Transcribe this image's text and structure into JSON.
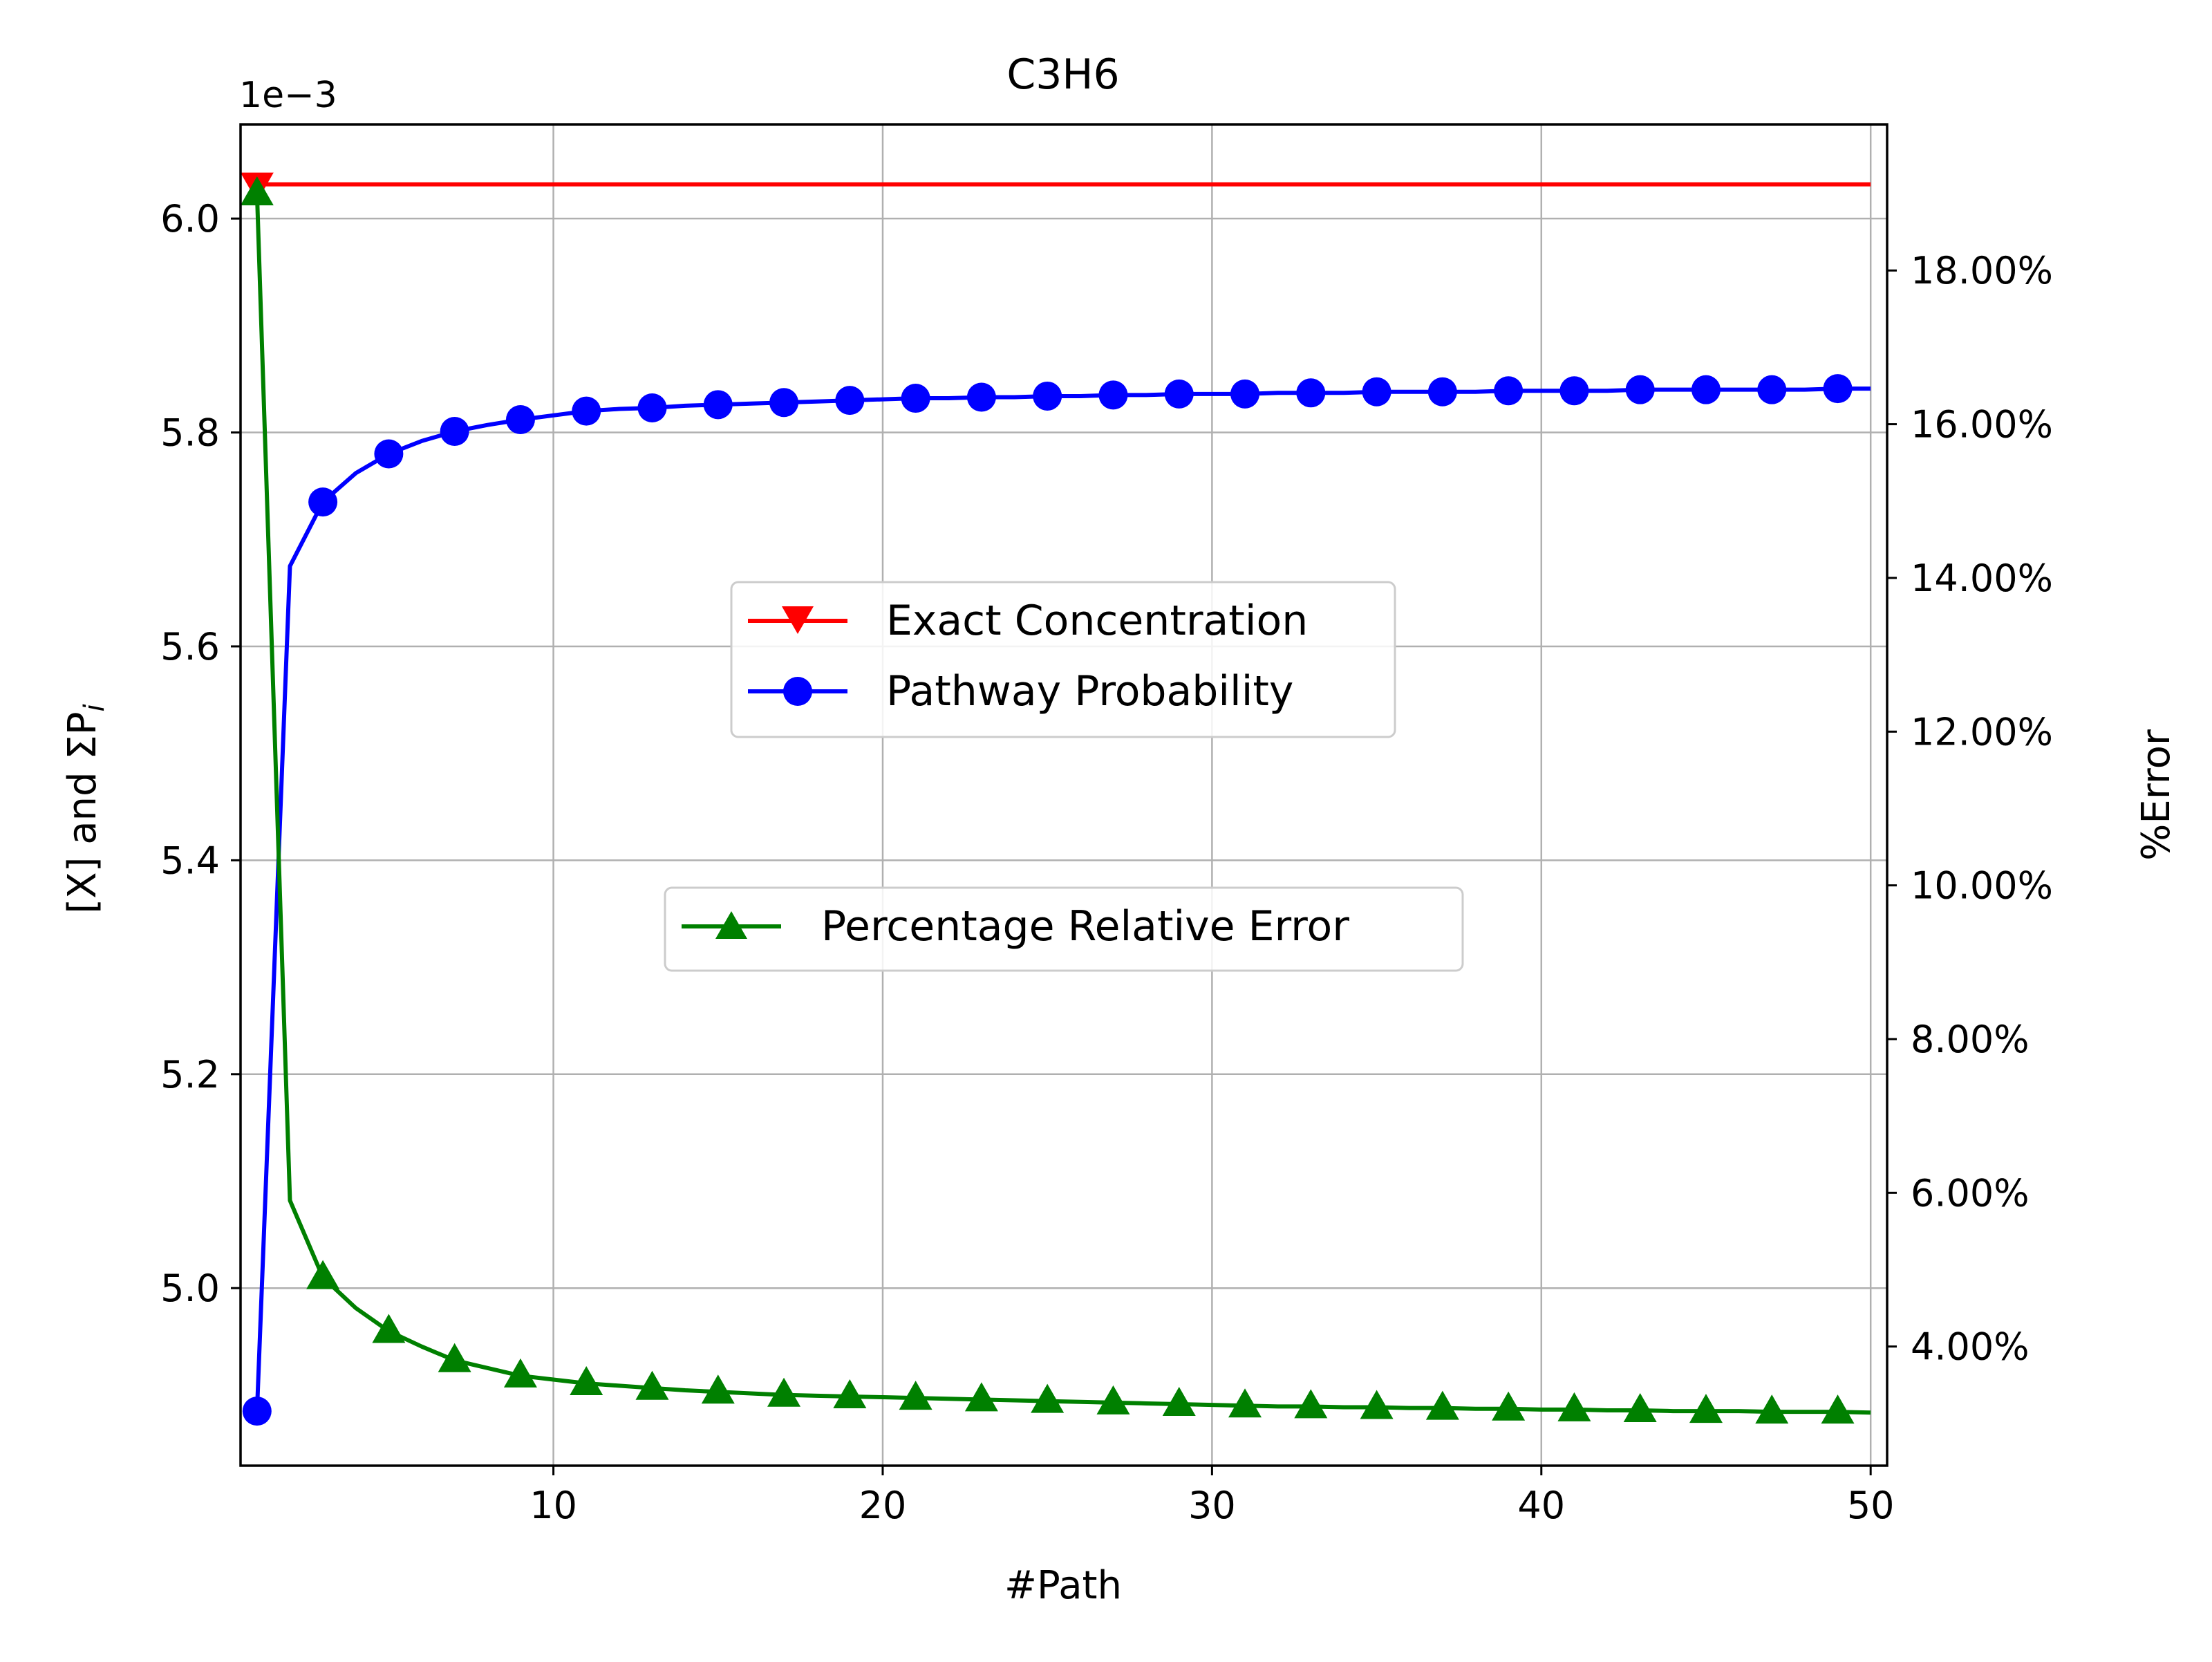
{
  "chart_data": {
    "type": "line",
    "title": "C3H6",
    "xlabel": "#Path",
    "ylabel": "[X] and ΣP",
    "ylabel_subscript": "i",
    "y2label": "%Error",
    "left_axis_offset_text": "1e−3",
    "xlim": [
      0.5,
      50.5
    ],
    "ylim": [
      4.834,
      6.088
    ],
    "y2lim": [
      2.45,
      19.9
    ],
    "x_ticks": [
      10,
      20,
      30,
      40,
      50
    ],
    "x_tick_labels": [
      "10",
      "20",
      "30",
      "40",
      "50"
    ],
    "y_ticks": [
      5.0,
      5.2,
      5.4,
      5.6,
      5.8,
      6.0
    ],
    "y_tick_labels": [
      "5.0",
      "5.2",
      "5.4",
      "5.6",
      "5.8",
      "6.0"
    ],
    "y2_ticks": [
      4,
      6,
      8,
      10,
      12,
      14,
      16,
      18
    ],
    "y2_tick_labels": [
      "4.00%",
      "6.00%",
      "8.00%",
      "10.00%",
      "12.00%",
      "14.00%",
      "16.00%",
      "18.00%"
    ],
    "grid": true,
    "legend_placement": "center",
    "series": [
      {
        "name": "Exact Concentration",
        "axis": "left",
        "color": "#ff0000",
        "marker": "triangle-down",
        "x": [
          1,
          50
        ],
        "y": [
          6.032,
          6.032
        ],
        "marker_x": [
          1
        ]
      },
      {
        "name": "Pathway Probability",
        "axis": "left",
        "color": "#0000ff",
        "marker": "circle",
        "x": [
          1,
          2,
          3,
          4,
          5,
          6,
          7,
          8,
          9,
          10,
          11,
          12,
          13,
          14,
          15,
          16,
          17,
          18,
          19,
          20,
          21,
          22,
          23,
          24,
          25,
          26,
          27,
          28,
          29,
          30,
          31,
          32,
          33,
          34,
          35,
          36,
          37,
          38,
          39,
          40,
          41,
          42,
          43,
          44,
          45,
          46,
          47,
          48,
          49,
          50
        ],
        "y": [
          4.885,
          5.675,
          5.735,
          5.762,
          5.78,
          5.792,
          5.801,
          5.807,
          5.812,
          5.816,
          5.82,
          5.822,
          5.823,
          5.825,
          5.826,
          5.827,
          5.828,
          5.829,
          5.83,
          5.831,
          5.832,
          5.832,
          5.833,
          5.833,
          5.834,
          5.834,
          5.835,
          5.835,
          5.836,
          5.836,
          5.836,
          5.837,
          5.837,
          5.837,
          5.838,
          5.838,
          5.838,
          5.838,
          5.839,
          5.839,
          5.839,
          5.839,
          5.84,
          5.84,
          5.84,
          5.84,
          5.84,
          5.84,
          5.841,
          5.841
        ],
        "marker_x": [
          1,
          3,
          5,
          7,
          9,
          11,
          13,
          15,
          17,
          19,
          21,
          23,
          25,
          27,
          29,
          31,
          33,
          35,
          37,
          39,
          41,
          43,
          45,
          47,
          49
        ]
      },
      {
        "name": "Percentage Relative Error",
        "axis": "right",
        "color": "#008000",
        "marker": "triangle-up",
        "x": [
          1,
          2,
          3,
          4,
          5,
          6,
          7,
          8,
          9,
          10,
          11,
          12,
          13,
          14,
          15,
          16,
          17,
          18,
          19,
          20,
          21,
          22,
          23,
          24,
          25,
          26,
          27,
          28,
          29,
          30,
          31,
          32,
          33,
          34,
          35,
          36,
          37,
          38,
          39,
          40,
          41,
          42,
          43,
          44,
          45,
          46,
          47,
          48,
          49,
          50
        ],
        "y": [
          19.0,
          5.9,
          4.9,
          4.5,
          4.2,
          4.0,
          3.82,
          3.72,
          3.62,
          3.57,
          3.52,
          3.49,
          3.46,
          3.43,
          3.41,
          3.39,
          3.37,
          3.36,
          3.35,
          3.34,
          3.33,
          3.32,
          3.31,
          3.3,
          3.29,
          3.28,
          3.27,
          3.26,
          3.25,
          3.24,
          3.23,
          3.22,
          3.22,
          3.21,
          3.21,
          3.2,
          3.2,
          3.19,
          3.19,
          3.18,
          3.18,
          3.17,
          3.17,
          3.16,
          3.16,
          3.16,
          3.15,
          3.15,
          3.15,
          3.14
        ],
        "marker_x": [
          1,
          3,
          5,
          7,
          9,
          11,
          13,
          15,
          17,
          19,
          21,
          23,
          25,
          27,
          29,
          31,
          33,
          35,
          37,
          39,
          41,
          43,
          45,
          47,
          49
        ]
      }
    ]
  }
}
